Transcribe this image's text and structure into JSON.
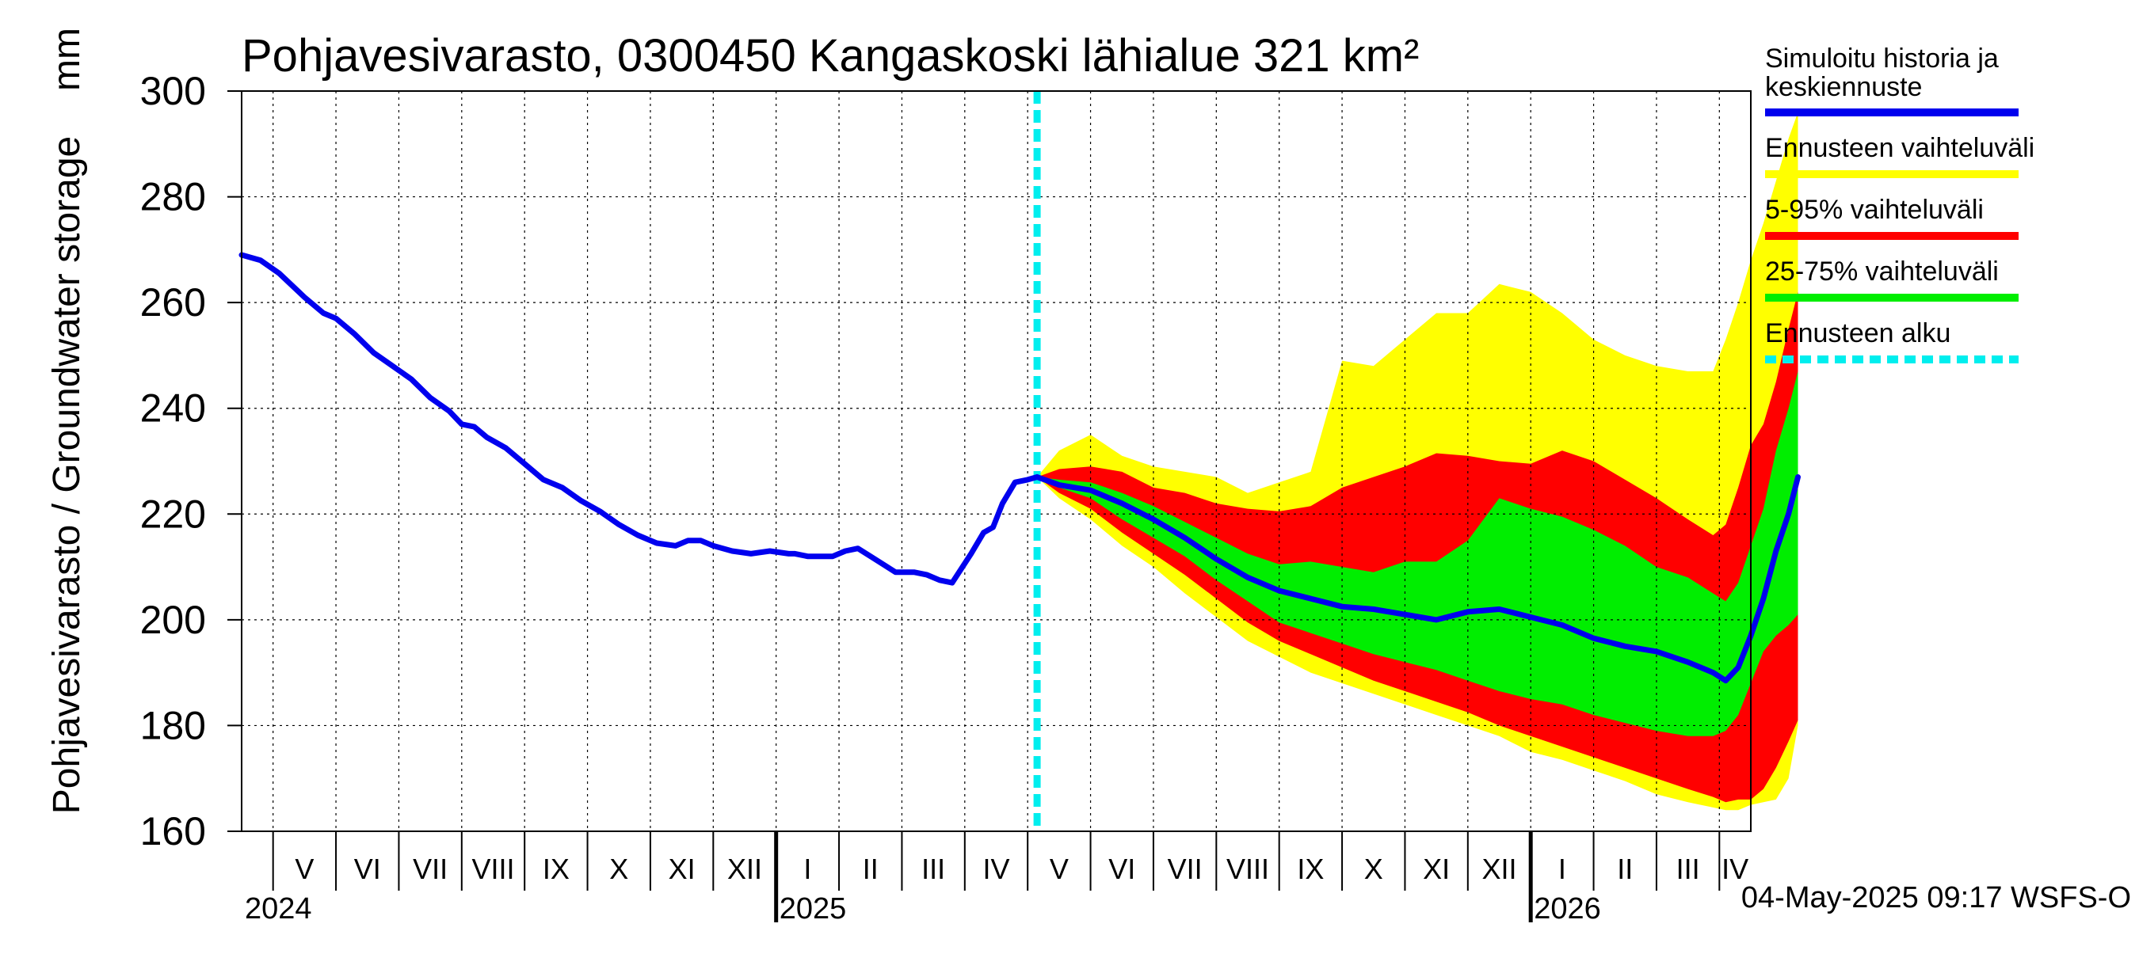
{
  "chart_data": {
    "type": "area",
    "title": "Pohjavesivarasto, 0300450 Kangaskoski lähialue 321 km²",
    "ylabel": "Pohjavesivarasto / Groundwater storage",
    "yunit": "mm",
    "ylim": [
      160,
      300
    ],
    "yticks": [
      160,
      180,
      200,
      220,
      240,
      260,
      280,
      300
    ],
    "xlim": [
      0,
      24
    ],
    "x_unit": "months since 2024-04-15",
    "months": [
      {
        "label": "V",
        "start": 0.5,
        "end": 1.5
      },
      {
        "label": "VI",
        "start": 1.5,
        "end": 2.5
      },
      {
        "label": "VII",
        "start": 2.5,
        "end": 3.5
      },
      {
        "label": "VIII",
        "start": 3.5,
        "end": 4.5
      },
      {
        "label": "IX",
        "start": 4.5,
        "end": 5.5
      },
      {
        "label": "X",
        "start": 5.5,
        "end": 6.5
      },
      {
        "label": "XI",
        "start": 6.5,
        "end": 7.5
      },
      {
        "label": "XII",
        "start": 7.5,
        "end": 8.5
      },
      {
        "label": "I",
        "start": 8.5,
        "end": 9.5
      },
      {
        "label": "II",
        "start": 9.5,
        "end": 10.5
      },
      {
        "label": "III",
        "start": 10.5,
        "end": 11.5
      },
      {
        "label": "IV",
        "start": 11.5,
        "end": 12.5
      },
      {
        "label": "V",
        "start": 12.5,
        "end": 13.5
      },
      {
        "label": "VI",
        "start": 13.5,
        "end": 14.5
      },
      {
        "label": "VII",
        "start": 14.5,
        "end": 15.5
      },
      {
        "label": "VIII",
        "start": 15.5,
        "end": 16.5
      },
      {
        "label": "IX",
        "start": 16.5,
        "end": 17.5
      },
      {
        "label": "X",
        "start": 17.5,
        "end": 18.5
      },
      {
        "label": "XI",
        "start": 18.5,
        "end": 19.5
      },
      {
        "label": "XII",
        "start": 19.5,
        "end": 20.5
      },
      {
        "label": "I",
        "start": 20.5,
        "end": 21.5
      },
      {
        "label": "II",
        "start": 21.5,
        "end": 22.5
      },
      {
        "label": "III",
        "start": 22.5,
        "end": 23.5
      },
      {
        "label": "IV",
        "start": 23.5,
        "end": 24.5
      }
    ],
    "years": [
      {
        "label": "2024",
        "at": 0.0
      },
      {
        "label": "2025",
        "at": 8.5
      },
      {
        "label": "2026",
        "at": 20.5
      }
    ],
    "forecast_start": 12.65,
    "history": {
      "name": "Simuloitu historia ja keskiennuste",
      "x": [
        0.0,
        0.3,
        0.6,
        1.0,
        1.3,
        1.5,
        1.8,
        2.1,
        2.4,
        2.7,
        3.0,
        3.3,
        3.5,
        3.7,
        3.9,
        4.2,
        4.5,
        4.8,
        5.1,
        5.4,
        5.7,
        6.0,
        6.3,
        6.6,
        6.9,
        7.1,
        7.3,
        7.5,
        7.8,
        8.1,
        8.4,
        8.7,
        8.8,
        9.0,
        9.2,
        9.4,
        9.6,
        9.8,
        10.0,
        10.2,
        10.4,
        10.7,
        10.9,
        11.1,
        11.3,
        11.6,
        11.8,
        11.95,
        12.1,
        12.3,
        12.5,
        12.65
      ],
      "values": [
        269.0,
        268.0,
        265.5,
        261.0,
        258.0,
        257.0,
        254.0,
        250.5,
        248.0,
        245.5,
        242.0,
        239.5,
        237.0,
        236.5,
        234.5,
        232.5,
        229.5,
        226.5,
        225.0,
        222.5,
        220.5,
        218.0,
        216.0,
        214.5,
        214.0,
        215.0,
        215.0,
        214.0,
        213.0,
        212.5,
        213.0,
        212.5,
        212.5,
        212.0,
        212.0,
        212.0,
        213.0,
        213.5,
        212.0,
        210.5,
        209.0,
        209.0,
        208.5,
        207.5,
        207.0,
        212.5,
        216.5,
        217.5,
        222.0,
        226.0,
        226.5,
        227.0
      ]
    },
    "forecast": {
      "x": [
        12.65,
        13.0,
        13.5,
        14.0,
        14.5,
        15.0,
        15.5,
        16.0,
        16.5,
        17.0,
        17.5,
        18.0,
        18.5,
        19.0,
        19.5,
        20.0,
        20.5,
        21.0,
        21.5,
        22.0,
        22.5,
        23.0,
        23.4,
        23.6,
        23.8,
        24.0,
        24.2,
        24.4,
        24.6,
        24.75
      ],
      "median": [
        227.0,
        225.5,
        224.5,
        222.0,
        219.0,
        215.5,
        211.5,
        208.0,
        205.5,
        204.0,
        202.5,
        202.0,
        201.0,
        200.0,
        201.5,
        202.0,
        200.5,
        199.0,
        196.5,
        195.0,
        194.0,
        192.0,
        190.0,
        188.5,
        191.0,
        197.0,
        204.0,
        213.0,
        220.0,
        227.0
      ],
      "range_yellow": {
        "name": "Ennusteen vaihteluväli",
        "upper": [
          227.0,
          232.0,
          235.0,
          231.0,
          229.0,
          228.0,
          227.0,
          224.0,
          226.0,
          228.0,
          249.0,
          248.0,
          253.0,
          258.0,
          258.0,
          263.5,
          262.0,
          258.0,
          253.0,
          250.0,
          248.0,
          247.0,
          247.0,
          253.0,
          260.0,
          268.0,
          275.0,
          283.0,
          291.0,
          296.0
        ],
        "lower": [
          227.0,
          223.0,
          219.0,
          214.0,
          210.0,
          205.0,
          200.5,
          196.0,
          193.0,
          190.0,
          188.0,
          186.0,
          184.0,
          182.0,
          180.0,
          178.0,
          175.0,
          173.5,
          171.5,
          169.5,
          167.0,
          165.5,
          164.5,
          164.0,
          164.0,
          165.0,
          165.5,
          166.0,
          170.0,
          180.0
        ]
      },
      "range_red": {
        "name": "5-95% vaihteluväli",
        "upper": [
          227.0,
          228.5,
          229.0,
          228.0,
          225.0,
          224.0,
          222.0,
          221.0,
          220.5,
          221.5,
          225.0,
          227.0,
          229.0,
          231.5,
          231.0,
          230.0,
          229.5,
          232.0,
          230.0,
          226.5,
          223.0,
          219.0,
          216.0,
          218.0,
          225.0,
          233.0,
          237.0,
          245.0,
          255.0,
          262.0
        ],
        "lower": [
          227.0,
          224.0,
          221.0,
          216.5,
          212.5,
          208.5,
          204.0,
          199.5,
          196.0,
          193.5,
          191.0,
          188.5,
          186.5,
          184.5,
          182.5,
          180.0,
          178.0,
          176.0,
          174.0,
          172.0,
          170.0,
          168.0,
          166.5,
          165.5,
          166.0,
          166.0,
          168.0,
          172.0,
          177.0,
          181.0
        ]
      },
      "range_green": {
        "name": "25-75% vaihteluväli",
        "upper": [
          227.0,
          226.5,
          226.0,
          224.0,
          221.5,
          218.5,
          215.5,
          212.5,
          210.5,
          211.0,
          210.0,
          209.0,
          211.0,
          211.0,
          215.0,
          223.0,
          221.0,
          219.5,
          217.0,
          214.0,
          210.0,
          208.0,
          205.0,
          203.5,
          207.0,
          214.0,
          221.0,
          232.0,
          240.0,
          247.0
        ],
        "lower": [
          227.0,
          225.0,
          223.0,
          219.0,
          215.5,
          212.0,
          207.5,
          203.5,
          199.5,
          197.5,
          195.5,
          193.5,
          192.0,
          190.5,
          188.5,
          186.5,
          185.0,
          184.0,
          182.0,
          180.5,
          179.0,
          178.0,
          178.0,
          179.0,
          182.0,
          188.0,
          194.0,
          197.0,
          199.0,
          201.0
        ]
      }
    },
    "legend": [
      {
        "label": "Simuloitu historia ja keskiennuste",
        "color": "#0000ee",
        "style": "solid"
      },
      {
        "label": "Ennusteen vaihteluväli",
        "color": "#ffff00",
        "style": "solid"
      },
      {
        "label": "5-95% vaihteluväli",
        "color": "#ff0000",
        "style": "solid"
      },
      {
        "label": "25-75% vaihteluväli",
        "color": "#00ee00",
        "style": "solid"
      },
      {
        "label": "Ennusteen alku",
        "color": "#00eeee",
        "style": "dashed"
      }
    ],
    "legend_position": "right",
    "grid": true,
    "footer": "04-May-2025 09:17 WSFS-O"
  }
}
